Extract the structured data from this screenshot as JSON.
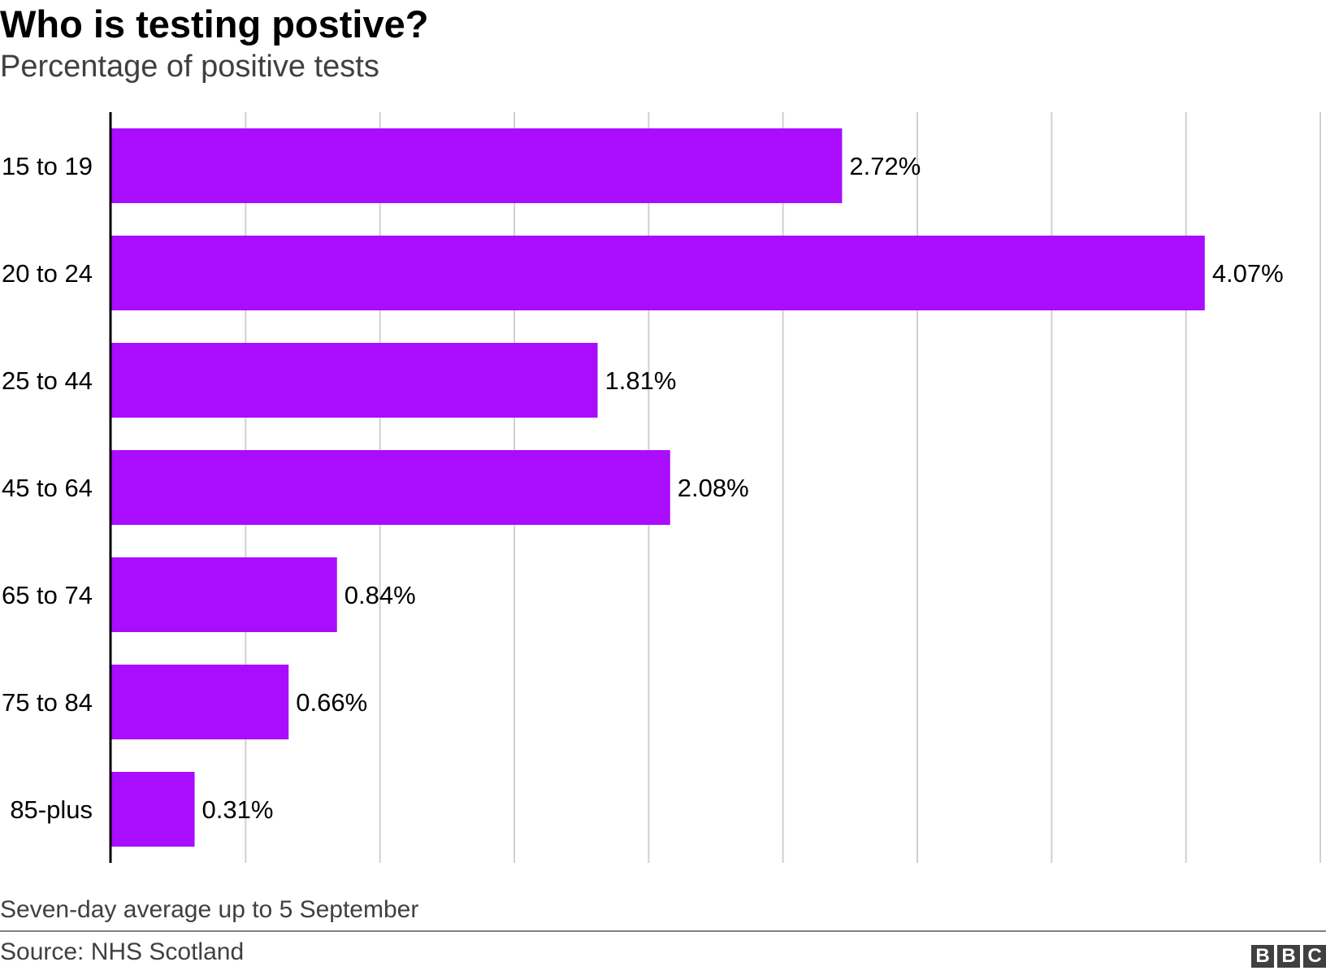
{
  "title": "Who is testing postive?",
  "subtitle": "Percentage of positive tests",
  "note": "Seven-day average up to 5 September",
  "source": "Source: NHS Scotland",
  "logo": [
    "B",
    "B",
    "C"
  ],
  "colors": {
    "bar": "#aa0cfd",
    "grid": "#d0d0d0",
    "axis": "#000000",
    "text": "#000000",
    "muted": "#404040"
  },
  "chart_data": {
    "type": "bar",
    "orientation": "horizontal",
    "title": "Who is testing postive?",
    "subtitle": "Percentage of positive tests",
    "categories": [
      "15 to 19",
      "20 to 24",
      "25 to 44",
      "45 to 64",
      "65 to 74",
      "75 to 84",
      "85-plus"
    ],
    "values": [
      2.72,
      4.07,
      1.81,
      2.08,
      0.84,
      0.66,
      0.31
    ],
    "value_labels": [
      "2.72%",
      "4.07%",
      "1.81%",
      "2.08%",
      "0.84%",
      "0.66%",
      "0.31%"
    ],
    "unit": "%",
    "xlim": [
      0,
      4.5
    ],
    "gridlines": [
      0.5,
      1,
      1.5,
      2,
      2.5,
      3,
      3.5,
      4,
      4.5
    ],
    "grid": true,
    "legend": false,
    "x_tick_labels_shown": false
  }
}
